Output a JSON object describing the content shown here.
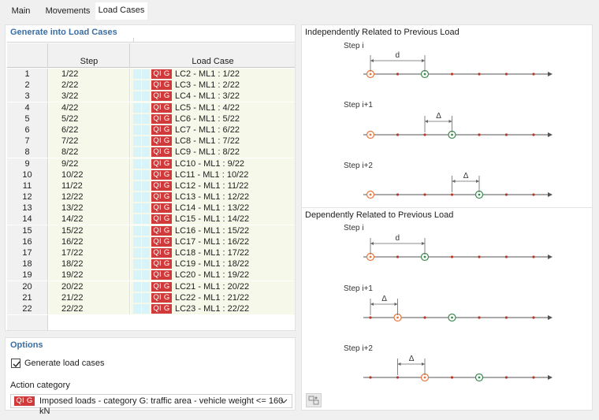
{
  "tabs": [
    {
      "label": "Main"
    },
    {
      "label": "Movements"
    },
    {
      "label": "Load Cases"
    }
  ],
  "generate": {
    "title": "Generate into Load Cases",
    "col_step": "Step",
    "col_load_case": "Load Case",
    "badge": "QI G",
    "rows": [
      {
        "n": "1",
        "step": "1/22",
        "lc": "LC2 - ML1 : 1/22"
      },
      {
        "n": "2",
        "step": "2/22",
        "lc": "LC3 - ML1 : 2/22"
      },
      {
        "n": "3",
        "step": "3/22",
        "lc": "LC4 - ML1 : 3/22"
      },
      {
        "n": "4",
        "step": "4/22",
        "lc": "LC5 - ML1 : 4/22"
      },
      {
        "n": "5",
        "step": "5/22",
        "lc": "LC6 - ML1 : 5/22"
      },
      {
        "n": "6",
        "step": "6/22",
        "lc": "LC7 - ML1 : 6/22"
      },
      {
        "n": "7",
        "step": "7/22",
        "lc": "LC8 - ML1 : 7/22"
      },
      {
        "n": "8",
        "step": "8/22",
        "lc": "LC9 - ML1 : 8/22"
      },
      {
        "n": "9",
        "step": "9/22",
        "lc": "LC10 - ML1 : 9/22"
      },
      {
        "n": "10",
        "step": "10/22",
        "lc": "LC11 - ML1 : 10/22"
      },
      {
        "n": "11",
        "step": "11/22",
        "lc": "LC12 - ML1 : 11/22"
      },
      {
        "n": "12",
        "step": "12/22",
        "lc": "LC13 - ML1 : 12/22"
      },
      {
        "n": "13",
        "step": "13/22",
        "lc": "LC14 - ML1 : 13/22"
      },
      {
        "n": "14",
        "step": "14/22",
        "lc": "LC15 - ML1 : 14/22"
      },
      {
        "n": "15",
        "step": "15/22",
        "lc": "LC16 - ML1 : 15/22"
      },
      {
        "n": "16",
        "step": "16/22",
        "lc": "LC17 - ML1 : 16/22"
      },
      {
        "n": "17",
        "step": "17/22",
        "lc": "LC18 - ML1 : 17/22"
      },
      {
        "n": "18",
        "step": "18/22",
        "lc": "LC19 - ML1 : 18/22"
      },
      {
        "n": "19",
        "step": "19/22",
        "lc": "LC20 - ML1 : 19/22"
      },
      {
        "n": "20",
        "step": "20/22",
        "lc": "LC21 - ML1 : 20/22"
      },
      {
        "n": "21",
        "step": "21/22",
        "lc": "LC22 - ML1 : 21/22"
      },
      {
        "n": "22",
        "step": "22/22",
        "lc": "LC23 - ML1 : 22/22"
      }
    ]
  },
  "options": {
    "title": "Options",
    "generate_label": "Generate load cases",
    "generate_checked": true,
    "action_category_label": "Action category",
    "action_category_badge": "QI G",
    "action_category_value": "Imposed loads - category G: traffic area - vehicle weight <= 160 kN"
  },
  "diagrams": {
    "independent_title": "Independently Related to Previous Load",
    "dependent_title": "Dependently Related to Previous Load",
    "step_i": "Step i",
    "step_i1": "Step i+1",
    "step_i2": "Step i+2",
    "d_label": "d",
    "delta_label": "Δ",
    "color_orange": "#e8743b",
    "color_green": "#3a8a4e",
    "color_red_dot": "#b83a2a"
  },
  "colors": {
    "accent": "#3a6ea5",
    "badge": "#d03a3a",
    "row_bg": "#f6f8ea",
    "cyan_cell": "#d8f4f8"
  }
}
